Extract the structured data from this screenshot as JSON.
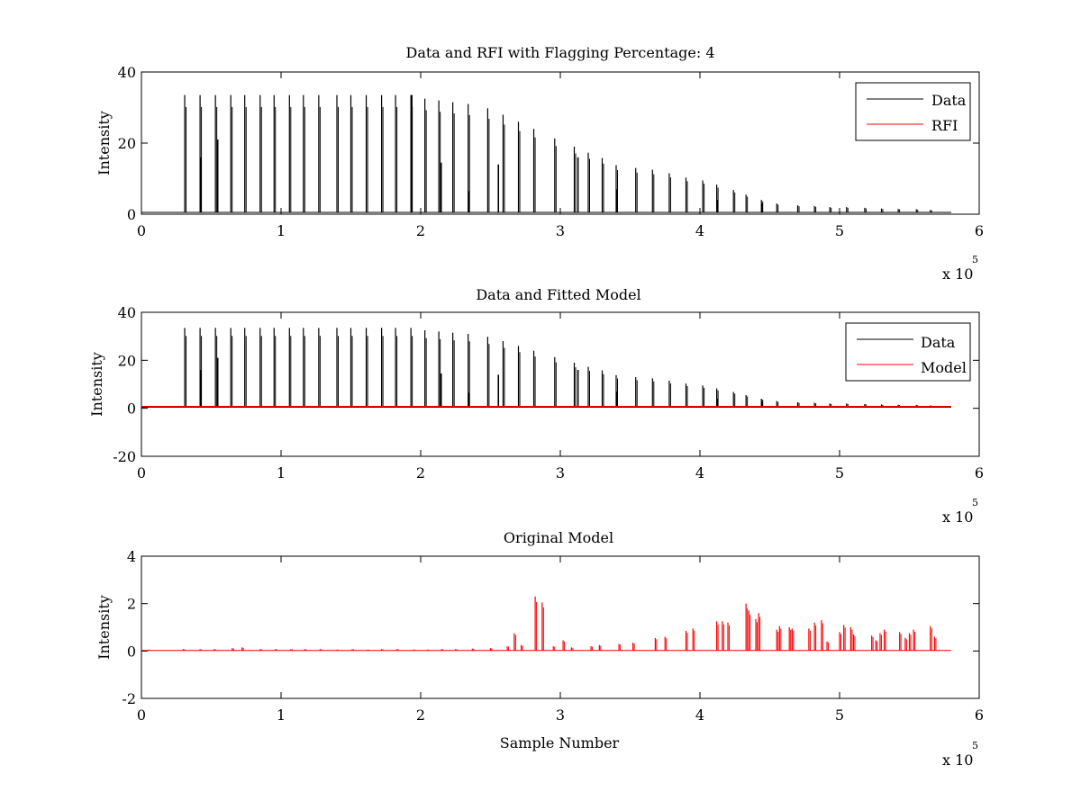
{
  "chart_data": [
    {
      "type": "line",
      "title": "Data and RFI with Flagging Percentage: 4",
      "xlabel": "",
      "ylabel": "Intensity",
      "xlim": [
        0,
        6
      ],
      "ylim": [
        0,
        40
      ],
      "x_ticks": [
        "0",
        "1",
        "2",
        "3",
        "4",
        "5",
        "6"
      ],
      "y_ticks": [
        "0",
        "20",
        "40"
      ],
      "x_exponent_label": "x 10",
      "x_exponent_power": "5",
      "legend": {
        "position": "top-right",
        "entries": [
          {
            "name": "Data",
            "color": "#000000"
          },
          {
            "name": "RFI",
            "color": "#ff0000"
          }
        ]
      },
      "series": [
        {
          "name": "Data",
          "color": "#000000",
          "baseline": 0.5,
          "x_end": 5.8,
          "peaks": [
            [
              0.31,
              33.5
            ],
            [
              0.42,
              33.5
            ],
            [
              0.53,
              33.5
            ],
            [
              0.64,
              33.5
            ],
            [
              0.74,
              33.5
            ],
            [
              0.85,
              33.5
            ],
            [
              0.95,
              33.5
            ],
            [
              1.06,
              33.5
            ],
            [
              1.16,
              33.5
            ],
            [
              1.27,
              33.5
            ],
            [
              1.4,
              33.5
            ],
            [
              1.5,
              33.5
            ],
            [
              1.61,
              33.5
            ],
            [
              1.72,
              33.5
            ],
            [
              1.82,
              33.5
            ],
            [
              1.93,
              33.5
            ],
            [
              2.03,
              32.5
            ],
            [
              2.13,
              32
            ],
            [
              2.23,
              31.5
            ],
            [
              2.34,
              31
            ],
            [
              2.48,
              29.8
            ],
            [
              2.59,
              28
            ],
            [
              2.7,
              26
            ],
            [
              2.81,
              24
            ],
            [
              2.96,
              21.3
            ],
            [
              3.1,
              19
            ],
            [
              3.2,
              17.3
            ],
            [
              3.3,
              15.8
            ],
            [
              3.4,
              13.8
            ],
            [
              3.54,
              13
            ],
            [
              3.66,
              12.5
            ],
            [
              3.78,
              11.5
            ],
            [
              3.9,
              10.3
            ],
            [
              4.02,
              9.5
            ],
            [
              4.12,
              8.3
            ],
            [
              4.24,
              6.8
            ],
            [
              4.33,
              5.5
            ],
            [
              4.44,
              4
            ],
            [
              4.55,
              3
            ],
            [
              4.7,
              2.5
            ],
            [
              4.82,
              2.3
            ],
            [
              4.93,
              2
            ],
            [
              5.05,
              2
            ],
            [
              5.18,
              1.8
            ],
            [
              5.3,
              1.6
            ],
            [
              5.42,
              1.5
            ],
            [
              5.55,
              1.4
            ],
            [
              5.65,
              1.2
            ]
          ],
          "secondary_peaks": [
            [
              0.42,
              16
            ],
            [
              0.54,
              21
            ],
            [
              2.14,
              14.5
            ],
            [
              2.34,
              6.5
            ],
            [
              2.55,
              14
            ],
            [
              3.12,
              16
            ],
            [
              3.4,
              7
            ],
            [
              4.12,
              4
            ],
            [
              4.44,
              3
            ],
            [
              1.93,
              33.5
            ]
          ]
        },
        {
          "name": "RFI",
          "color": "#ff0000",
          "values": []
        }
      ]
    },
    {
      "type": "line",
      "title": "Data and Fitted Model",
      "xlabel": "",
      "ylabel": "Intensity",
      "xlim": [
        0,
        6
      ],
      "ylim": [
        -20,
        40
      ],
      "x_ticks": [
        "0",
        "1",
        "2",
        "3",
        "4",
        "5",
        "6"
      ],
      "y_ticks": [
        "-20",
        "0",
        "20",
        "40"
      ],
      "x_exponent_label": "x 10",
      "x_exponent_power": "5",
      "legend": {
        "position": "top-right",
        "entries": [
          {
            "name": "Data",
            "color": "#000000"
          },
          {
            "name": "Model",
            "color": "#ff0000"
          }
        ]
      },
      "series": [
        {
          "name": "Data",
          "color": "#000000",
          "baseline": 0.5,
          "x_end": 5.8,
          "peaks": [
            [
              0.31,
              33.5
            ],
            [
              0.42,
              33.5
            ],
            [
              0.53,
              33.5
            ],
            [
              0.64,
              33.5
            ],
            [
              0.74,
              33.5
            ],
            [
              0.85,
              33.5
            ],
            [
              0.95,
              33.5
            ],
            [
              1.06,
              33.5
            ],
            [
              1.16,
              33.5
            ],
            [
              1.27,
              33.5
            ],
            [
              1.4,
              33.5
            ],
            [
              1.5,
              33.5
            ],
            [
              1.61,
              33.5
            ],
            [
              1.72,
              33.5
            ],
            [
              1.82,
              33.5
            ],
            [
              1.93,
              33.5
            ],
            [
              2.03,
              32.5
            ],
            [
              2.13,
              32
            ],
            [
              2.23,
              31.5
            ],
            [
              2.34,
              31
            ],
            [
              2.48,
              29.8
            ],
            [
              2.59,
              28
            ],
            [
              2.7,
              26
            ],
            [
              2.81,
              24
            ],
            [
              2.96,
              21.3
            ],
            [
              3.1,
              19
            ],
            [
              3.2,
              17.3
            ],
            [
              3.3,
              15.8
            ],
            [
              3.4,
              13.8
            ],
            [
              3.54,
              13
            ],
            [
              3.66,
              12.5
            ],
            [
              3.78,
              11.5
            ],
            [
              3.9,
              10.3
            ],
            [
              4.02,
              9.5
            ],
            [
              4.12,
              8.3
            ],
            [
              4.24,
              6.8
            ],
            [
              4.33,
              5.5
            ],
            [
              4.44,
              4
            ],
            [
              4.55,
              3
            ],
            [
              4.7,
              2.5
            ],
            [
              4.82,
              2.3
            ],
            [
              4.93,
              2
            ],
            [
              5.05,
              2
            ],
            [
              5.18,
              1.8
            ],
            [
              5.3,
              1.6
            ],
            [
              5.42,
              1.5
            ],
            [
              5.55,
              1.4
            ],
            [
              5.65,
              1.2
            ]
          ],
          "secondary_peaks": [
            [
              0.42,
              16
            ],
            [
              0.54,
              21
            ],
            [
              2.14,
              14.5
            ],
            [
              2.34,
              6.5
            ],
            [
              2.55,
              14
            ],
            [
              3.12,
              16
            ],
            [
              3.4,
              7
            ],
            [
              4.12,
              4
            ],
            [
              4.44,
              3
            ]
          ]
        },
        {
          "name": "Model",
          "color": "#ff0000",
          "baseline": 0.8,
          "x_end": 5.8
        }
      ]
    },
    {
      "type": "line",
      "title": "Original Model",
      "xlabel": "Sample Number",
      "ylabel": "Intensity",
      "xlim": [
        0,
        6
      ],
      "ylim": [
        -2,
        4
      ],
      "x_ticks": [
        "0",
        "1",
        "2",
        "3",
        "4",
        "5",
        "6"
      ],
      "y_ticks": [
        "-2",
        "0",
        "2",
        "4"
      ],
      "x_exponent_label": "x 10",
      "x_exponent_power": "5",
      "series": [
        {
          "name": "",
          "color": "#ff0000",
          "baseline": 0.02,
          "x_end": 5.8,
          "peaks": [
            [
              0.05,
              0.06
            ],
            [
              0.3,
              0.08
            ],
            [
              0.42,
              0.08
            ],
            [
              0.52,
              0.08
            ],
            [
              0.65,
              0.12
            ],
            [
              0.72,
              0.15
            ],
            [
              0.85,
              0.08
            ],
            [
              0.96,
              0.08
            ],
            [
              1.07,
              0.08
            ],
            [
              1.17,
              0.08
            ],
            [
              1.28,
              0.08
            ],
            [
              1.4,
              0.06
            ],
            [
              1.51,
              0.08
            ],
            [
              1.62,
              0.06
            ],
            [
              1.72,
              0.08
            ],
            [
              1.83,
              0.08
            ],
            [
              1.95,
              0.06
            ],
            [
              2.05,
              0.06
            ],
            [
              2.15,
              0.08
            ],
            [
              2.25,
              0.08
            ],
            [
              2.37,
              0.1
            ],
            [
              2.5,
              0.12
            ],
            [
              2.62,
              0.2
            ],
            [
              2.67,
              0.75
            ],
            [
              2.72,
              0.25
            ],
            [
              2.82,
              2.3
            ],
            [
              2.87,
              2.05
            ],
            [
              2.95,
              0.2
            ],
            [
              3.02,
              0.45
            ],
            [
              3.08,
              0.15
            ],
            [
              3.22,
              0.2
            ],
            [
              3.28,
              0.25
            ],
            [
              3.42,
              0.3
            ],
            [
              3.52,
              0.35
            ],
            [
              3.68,
              0.55
            ],
            [
              3.75,
              0.6
            ],
            [
              3.9,
              0.85
            ],
            [
              3.95,
              0.95
            ],
            [
              4.12,
              1.25
            ],
            [
              4.16,
              1.25
            ],
            [
              4.2,
              1.2
            ],
            [
              4.33,
              2.0
            ],
            [
              4.35,
              1.7
            ],
            [
              4.4,
              1.35
            ],
            [
              4.42,
              1.6
            ],
            [
              4.55,
              0.9
            ],
            [
              4.57,
              1.05
            ],
            [
              4.64,
              1.0
            ],
            [
              4.66,
              0.95
            ],
            [
              4.78,
              0.95
            ],
            [
              4.82,
              1.2
            ],
            [
              4.87,
              1.3
            ],
            [
              4.91,
              0.4
            ],
            [
              5.0,
              0.8
            ],
            [
              5.03,
              1.1
            ],
            [
              5.08,
              1.0
            ],
            [
              5.1,
              0.7
            ],
            [
              5.23,
              0.65
            ],
            [
              5.26,
              0.45
            ],
            [
              5.29,
              0.75
            ],
            [
              5.32,
              0.9
            ],
            [
              5.43,
              0.8
            ],
            [
              5.47,
              0.55
            ],
            [
              5.5,
              0.75
            ],
            [
              5.53,
              0.9
            ],
            [
              5.65,
              1.05
            ],
            [
              5.68,
              0.6
            ]
          ]
        }
      ]
    }
  ]
}
